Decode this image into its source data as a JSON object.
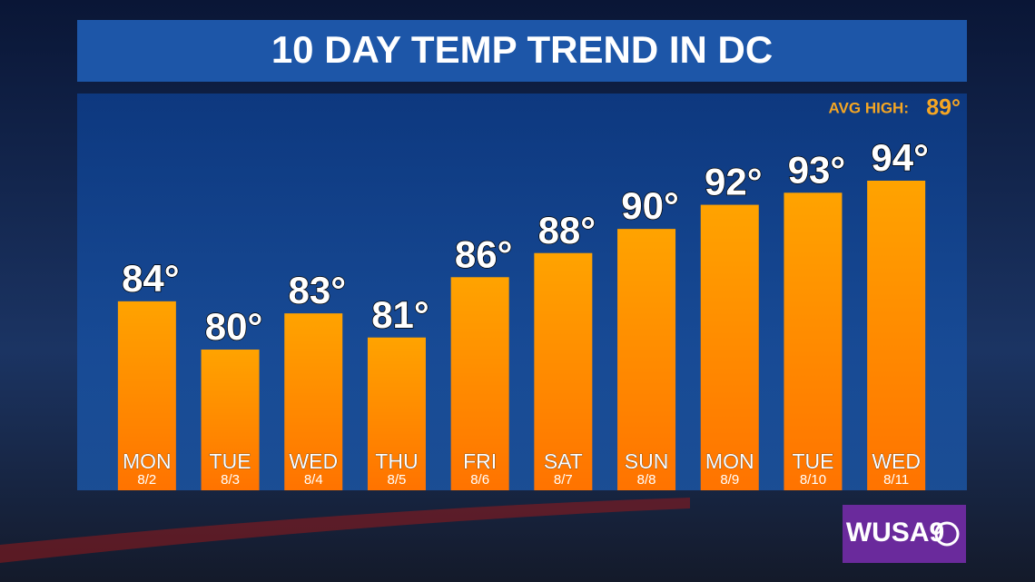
{
  "chart_data": {
    "type": "bar",
    "title": "10 DAY TEMP TREND IN DC",
    "categories": [
      "MON",
      "TUE",
      "WED",
      "THU",
      "FRI",
      "SAT",
      "SUN",
      "MON",
      "TUE",
      "WED"
    ],
    "dates": [
      "8/2",
      "8/3",
      "8/4",
      "8/5",
      "8/6",
      "8/7",
      "8/8",
      "8/9",
      "8/10",
      "8/11"
    ],
    "values": [
      84,
      80,
      83,
      81,
      86,
      88,
      90,
      92,
      93,
      94
    ],
    "value_labels": [
      "84°",
      "80°",
      "83°",
      "81°",
      "86°",
      "88°",
      "90°",
      "92°",
      "93°",
      "94°"
    ],
    "color": "#ff8c00",
    "avg_high_label": "AVG HIGH:",
    "avg_high": {
      "value": 89,
      "label": "89°"
    },
    "logo": "WUSA9"
  }
}
